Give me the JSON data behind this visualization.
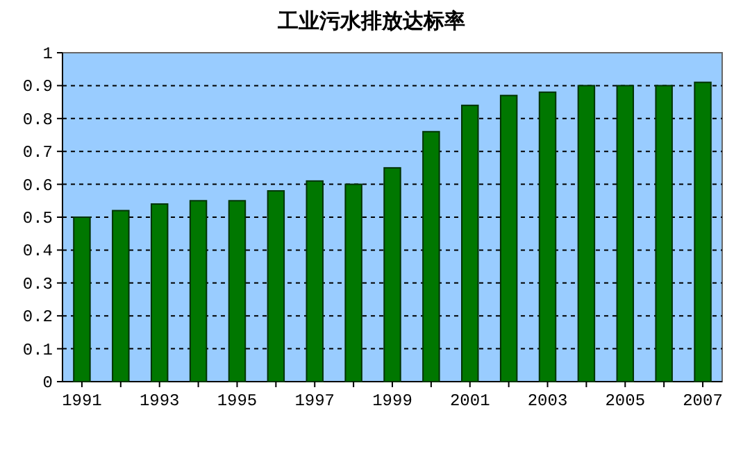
{
  "chart_data": {
    "type": "bar",
    "title": "工业污水排放达标率",
    "categories": [
      "1991",
      null,
      "1993",
      null,
      "1995",
      null,
      "1997",
      null,
      "1999",
      null,
      "2001",
      null,
      "2003",
      null,
      "2005",
      null,
      "2007"
    ],
    "values": [
      0.5,
      0.52,
      0.54,
      0.55,
      0.55,
      0.58,
      0.61,
      0.6,
      0.65,
      0.76,
      0.84,
      0.87,
      0.88,
      0.9,
      0.9,
      0.9,
      0.91
    ],
    "color": "#007700",
    "ylim": [
      0,
      1
    ],
    "yticks": [
      0,
      0.1,
      0.2,
      0.3,
      0.4,
      0.5,
      0.6,
      0.7,
      0.8,
      0.9,
      1
    ],
    "grid": "y"
  }
}
